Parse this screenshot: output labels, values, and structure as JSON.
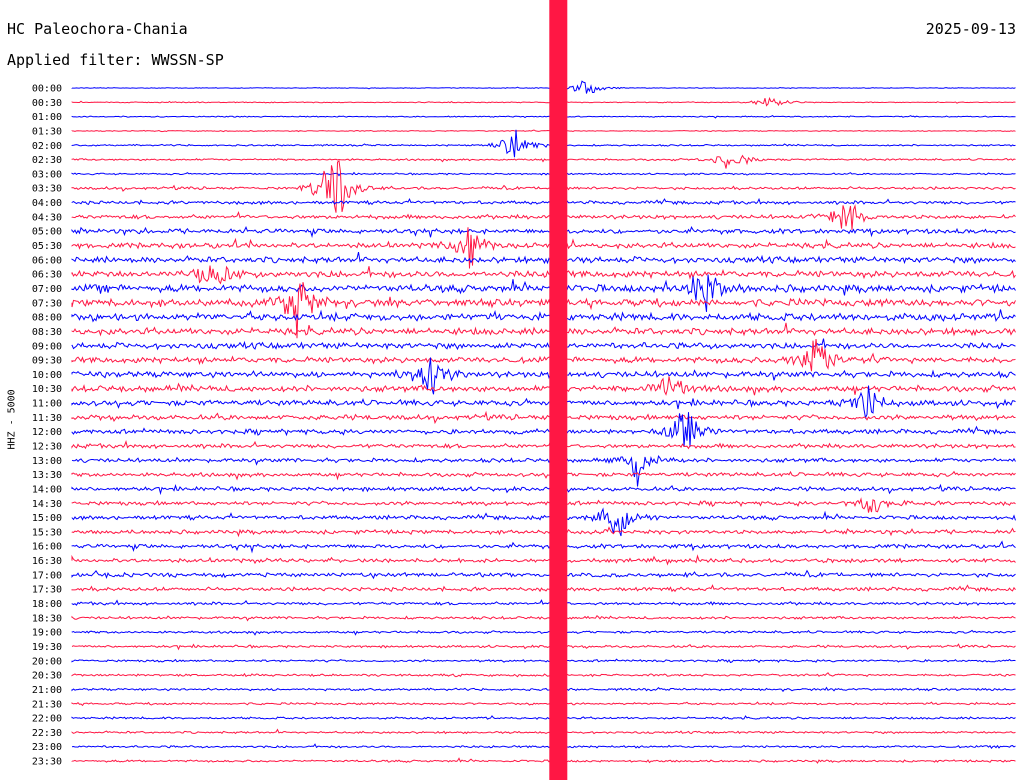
{
  "header": {
    "station": "HC Paleochora-Chania",
    "date": "2025-09-13",
    "filter": "Applied filter: WWSSN-SP"
  },
  "chart_data": {
    "type": "line",
    "ylabel": "HHZ - 5000",
    "row_labels": [
      "00:00",
      "00:30",
      "01:00",
      "01:30",
      "02:00",
      "02:30",
      "03:00",
      "03:30",
      "04:00",
      "04:30",
      "05:00",
      "05:30",
      "06:00",
      "06:30",
      "07:00",
      "07:30",
      "08:00",
      "08:30",
      "09:00",
      "09:30",
      "10:00",
      "10:30",
      "11:00",
      "11:30",
      "12:00",
      "12:30",
      "13:00",
      "13:30",
      "14:00",
      "14:30",
      "15:00",
      "15:30",
      "16:00",
      "16:30",
      "17:00",
      "17:30",
      "18:00",
      "18:30",
      "19:00",
      "19:30",
      "20:00",
      "20:30",
      "21:00",
      "21:30",
      "22:00",
      "22:30",
      "23:00",
      "23:30"
    ],
    "row_colors": [
      "#0000ff",
      "#ff1744"
    ],
    "activity_profile": [
      0.05,
      0.07,
      0.08,
      0.07,
      0.12,
      0.14,
      0.12,
      0.2,
      0.25,
      0.3,
      0.35,
      0.4,
      0.45,
      0.5,
      0.55,
      0.55,
      0.55,
      0.5,
      0.45,
      0.45,
      0.45,
      0.45,
      0.42,
      0.38,
      0.35,
      0.32,
      0.3,
      0.3,
      0.3,
      0.3,
      0.3,
      0.3,
      0.3,
      0.3,
      0.3,
      0.28,
      0.22,
      0.2,
      0.18,
      0.18,
      0.17,
      0.17,
      0.17,
      0.16,
      0.16,
      0.16,
      0.16,
      0.16
    ],
    "events": [
      {
        "row": 0,
        "x": 0.545,
        "amp": 8
      },
      {
        "row": 1,
        "x": 0.74,
        "amp": 6
      },
      {
        "row": 4,
        "x": 0.47,
        "amp": 18
      },
      {
        "row": 5,
        "x": 0.7,
        "amp": 12
      },
      {
        "row": 7,
        "x": 0.28,
        "amp": 40
      },
      {
        "row": 9,
        "x": 0.82,
        "amp": 18
      },
      {
        "row": 11,
        "x": 0.42,
        "amp": 20
      },
      {
        "row": 13,
        "x": 0.15,
        "amp": 18
      },
      {
        "row": 14,
        "x": 0.67,
        "amp": 22
      },
      {
        "row": 15,
        "x": 0.24,
        "amp": 30
      },
      {
        "row": 19,
        "x": 0.79,
        "amp": 26
      },
      {
        "row": 20,
        "x": 0.38,
        "amp": 20
      },
      {
        "row": 21,
        "x": 0.63,
        "amp": 18
      },
      {
        "row": 22,
        "x": 0.84,
        "amp": 20
      },
      {
        "row": 24,
        "x": 0.65,
        "amp": 22
      },
      {
        "row": 26,
        "x": 0.6,
        "amp": 18
      },
      {
        "row": 29,
        "x": 0.85,
        "amp": 10
      },
      {
        "row": 30,
        "x": 0.58,
        "amp": 20
      }
    ],
    "spike_bands": [
      {
        "x": 0.5364,
        "width": 0.0176,
        "color": "#ff1744"
      }
    ]
  }
}
